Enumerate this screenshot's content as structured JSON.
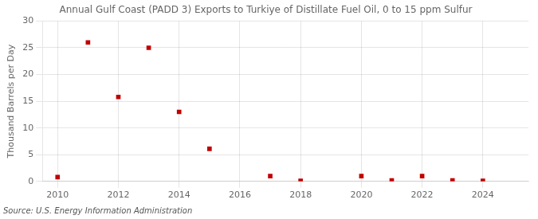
{
  "chart_data": {
    "type": "scatter",
    "title": "Annual Gulf Coast (PADD 3) Exports to Turkiye of Distillate Fuel Oil, 0 to 15 ppm Sulfur",
    "ylabel": "Thousand Barrels per Day",
    "annotation": "Source: U.S. Energy Information Administration",
    "x": [
      2010,
      2011,
      2012,
      2013,
      2014,
      2015,
      2017,
      2018,
      2020,
      2021,
      2022,
      2023,
      2024
    ],
    "values": [
      0.8,
      26.0,
      15.8,
      25.0,
      13.0,
      6.1,
      1.0,
      0.1,
      1.0,
      0.2,
      1.0,
      0.2,
      0.1
    ],
    "color": "#c00000",
    "marker": "square",
    "xlim": [
      2009.5,
      2025.5
    ],
    "xticks": [
      2010,
      2012,
      2014,
      2016,
      2018,
      2020,
      2022,
      2024
    ],
    "ylim": [
      0,
      30
    ],
    "yticks": [
      0,
      5,
      10,
      15,
      20,
      25,
      30
    ],
    "grid": true
  }
}
